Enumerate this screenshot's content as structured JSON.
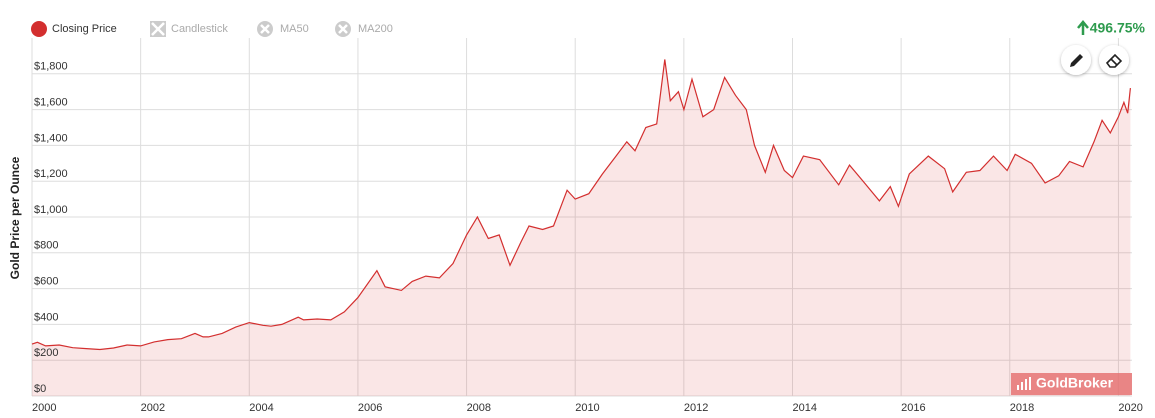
{
  "chart_data": {
    "type": "area",
    "y_label": "Gold Price per Ounce",
    "change": "496.75%",
    "inactive_legend": [
      "Candlestick",
      "MA50",
      "MA200"
    ],
    "watermark": "GoldBroker",
    "x": [
      2000.0,
      2000.1,
      2000.25,
      2000.5,
      2000.75,
      2001.0,
      2001.25,
      2001.5,
      2001.75,
      2002.0,
      2002.25,
      2002.5,
      2002.75,
      2003.0,
      2003.15,
      2003.25,
      2003.5,
      2003.75,
      2004.0,
      2004.25,
      2004.4,
      2004.6,
      2004.9,
      2005.0,
      2005.25,
      2005.5,
      2005.75,
      2006.0,
      2006.35,
      2006.5,
      2006.8,
      2007.0,
      2007.25,
      2007.5,
      2007.75,
      2008.0,
      2008.2,
      2008.4,
      2008.6,
      2008.8,
      2009.0,
      2009.15,
      2009.4,
      2009.6,
      2009.85,
      2010.0,
      2010.25,
      2010.5,
      2010.75,
      2010.95,
      2011.1,
      2011.3,
      2011.5,
      2011.65,
      2011.75,
      2011.9,
      2012.0,
      2012.15,
      2012.35,
      2012.55,
      2012.75,
      2012.95,
      2013.15,
      2013.3,
      2013.5,
      2013.65,
      2013.85,
      2014.0,
      2014.2,
      2014.5,
      2014.85,
      2015.05,
      2015.3,
      2015.6,
      2015.8,
      2015.95,
      2016.15,
      2016.5,
      2016.8,
      2016.95,
      2017.2,
      2017.45,
      2017.7,
      2017.95,
      2018.1,
      2018.4,
      2018.65,
      2018.9,
      2019.1,
      2019.35,
      2019.55,
      2019.7,
      2019.85,
      2020.0,
      2020.1,
      2020.17,
      2020.22
    ],
    "series": [
      {
        "name": "Closing Price",
        "color": "#d32f2f",
        "values": [
          290,
          300,
          280,
          285,
          270,
          265,
          260,
          268,
          285,
          280,
          302,
          315,
          320,
          350,
          330,
          330,
          350,
          385,
          410,
          395,
          390,
          400,
          440,
          425,
          430,
          425,
          470,
          550,
          700,
          610,
          590,
          640,
          670,
          660,
          740,
          900,
          1000,
          880,
          900,
          730,
          860,
          950,
          930,
          950,
          1150,
          1100,
          1130,
          1240,
          1340,
          1420,
          1370,
          1500,
          1520,
          1880,
          1650,
          1700,
          1600,
          1770,
          1560,
          1600,
          1780,
          1680,
          1600,
          1400,
          1250,
          1400,
          1260,
          1220,
          1340,
          1320,
          1180,
          1290,
          1200,
          1090,
          1170,
          1060,
          1240,
          1340,
          1270,
          1140,
          1250,
          1260,
          1340,
          1260,
          1350,
          1300,
          1190,
          1230,
          1310,
          1280,
          1420,
          1540,
          1470,
          1560,
          1640,
          1580,
          1720
        ]
      }
    ],
    "xlim": [
      2000,
      2020.25
    ],
    "xticks": [
      2000,
      2002,
      2004,
      2006,
      2008,
      2010,
      2012,
      2014,
      2016,
      2018,
      2020
    ],
    "ylim": [
      0,
      2000
    ],
    "yticks": [
      {
        "value": 0,
        "label": "$0"
      },
      {
        "value": 200,
        "label": "$200"
      },
      {
        "value": 400,
        "label": "$400"
      },
      {
        "value": 600,
        "label": "$600"
      },
      {
        "value": 800,
        "label": "$800"
      },
      {
        "value": 1000,
        "label": "$1,000"
      },
      {
        "value": 1200,
        "label": "$1,200"
      },
      {
        "value": 1400,
        "label": "$1,400"
      },
      {
        "value": 1600,
        "label": "$1,600"
      },
      {
        "value": 1800,
        "label": "$1,800"
      }
    ],
    "grid": true
  }
}
